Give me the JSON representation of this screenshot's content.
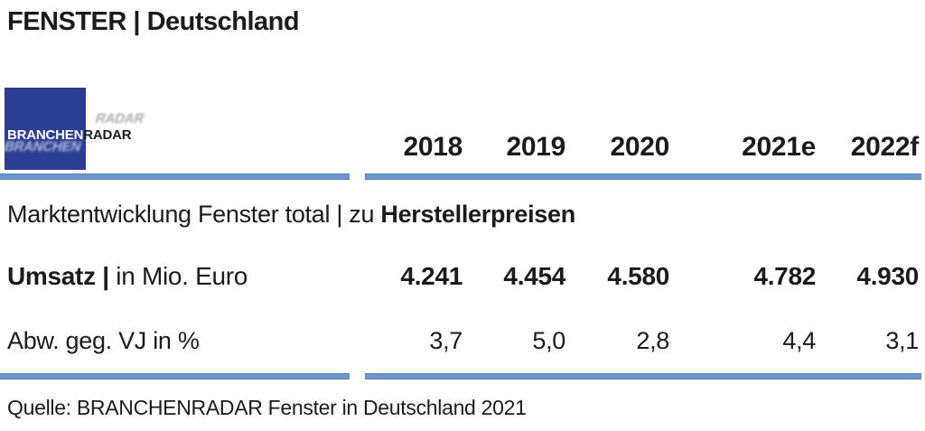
{
  "header": {
    "title": "FENSTER | Deutschland"
  },
  "logo": {
    "text_primary": "BRANCHEN",
    "text_secondary": "RADAR"
  },
  "chart_data": {
    "type": "table",
    "title": "Marktentwicklung Fenster total | zu Herstellerpreisen",
    "section_title_regular": "Marktentwicklung Fenster total | zu ",
    "section_title_bold": "Herstellerpreisen",
    "columns": [
      "2018",
      "2019",
      "2020",
      "2021e",
      "2022f"
    ],
    "rows": [
      {
        "label_bold": "Umsatz |",
        "label_rest": " in Mio. Euro",
        "values": [
          "4.241",
          "4.454",
          "4.580",
          "4.782",
          "4.930"
        ],
        "values_numeric": [
          4241,
          4454,
          4580,
          4782,
          4930
        ]
      },
      {
        "label": "Abw. geg. VJ in %",
        "values": [
          "3,7",
          "5,0",
          "2,8",
          "4,4",
          "3,1"
        ],
        "values_numeric": [
          3.7,
          5.0,
          2.8,
          4.4,
          3.1
        ]
      }
    ]
  },
  "footer": {
    "source": "Quelle: BRANCHENRADAR Fenster in Deutschland 2021"
  },
  "colors": {
    "divider_blue": "#6a92c7",
    "logo_blue": "#2c3e94",
    "text": "#1b1b1b"
  }
}
